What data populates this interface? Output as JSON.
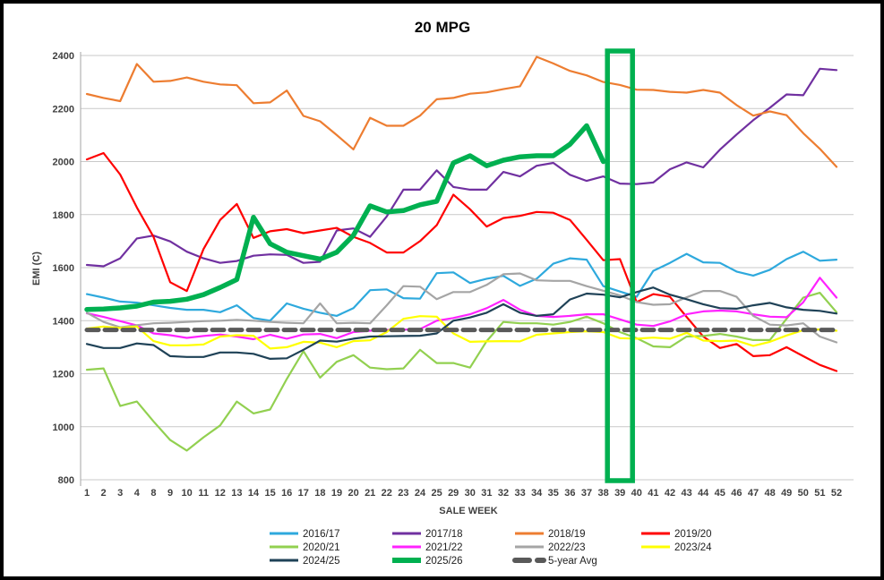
{
  "title": "20 MPG",
  "chart_data": {
    "type": "line",
    "title": "20 MPG",
    "xlabel": "SALE WEEK",
    "ylabel": "EMI (C)",
    "ylim": [
      800,
      2400
    ],
    "y_ticks": [
      800,
      1000,
      1200,
      1400,
      1600,
      1800,
      2000,
      2200,
      2400
    ],
    "grid": "horizontal",
    "legend_position": "bottom",
    "categories": [
      "1",
      "2",
      "3",
      "4",
      "8",
      "9",
      "10",
      "11",
      "12",
      "13",
      "14",
      "15",
      "16",
      "17",
      "18",
      "19",
      "20",
      "21",
      "22",
      "23",
      "24",
      "25",
      "29",
      "30",
      "31",
      "32",
      "33",
      "34",
      "35",
      "36",
      "37",
      "38",
      "39",
      "40",
      "41",
      "42",
      "43",
      "44",
      "45",
      "46",
      "47",
      "48",
      "49",
      "50",
      "51",
      "52"
    ],
    "highlight": {
      "week": "39",
      "color": "#00B050",
      "y_from": 800,
      "y_to": 2400
    },
    "series": [
      {
        "name": "2016/17",
        "color": "#2EA9DD",
        "width": 2.2,
        "draw_order": 0,
        "values": [
          1500,
          1487,
          1472,
          1468,
          1458,
          1448,
          1441,
          1441,
          1432,
          1458,
          1410,
          1400,
          1465,
          1445,
          1430,
          1418,
          1447,
          1515,
          1518,
          1485,
          1483,
          1579,
          1582,
          1542,
          1558,
          1569,
          1531,
          1558,
          1615,
          1635,
          1630,
          1530,
          1510,
          1490,
          1588,
          1618,
          1652,
          1620,
          1618,
          1585,
          1570,
          1592,
          1632,
          1660,
          1626,
          1630
        ]
      },
      {
        "name": "2017/18",
        "color": "#7030A0",
        "width": 2.2,
        "draw_order": 1,
        "values": [
          1610,
          1605,
          1635,
          1710,
          1721,
          1699,
          1660,
          1635,
          1618,
          1625,
          1645,
          1650,
          1648,
          1618,
          1622,
          1740,
          1748,
          1716,
          1793,
          1894,
          1894,
          1967,
          1904,
          1894,
          1894,
          1961,
          1944,
          1984,
          1995,
          1950,
          1927,
          1944,
          1917,
          1915,
          1921,
          1971,
          1997,
          1978,
          2045,
          2102,
          2156,
          2203,
          2253,
          2250,
          2350,
          2345
        ]
      },
      {
        "name": "2018/19",
        "color": "#ED7D31",
        "width": 2.2,
        "draw_order": 2,
        "values": [
          2255,
          2240,
          2228,
          2368,
          2301,
          2304,
          2317,
          2301,
          2291,
          2288,
          2220,
          2223,
          2268,
          2172,
          2152,
          2100,
          2046,
          2165,
          2135,
          2135,
          2173,
          2235,
          2240,
          2256,
          2261,
          2273,
          2284,
          2395,
          2370,
          2342,
          2325,
          2300,
          2289,
          2271,
          2270,
          2263,
          2260,
          2270,
          2260,
          2213,
          2173,
          2189,
          2175,
          2107,
          2048,
          1980
        ]
      },
      {
        "name": "2019/20",
        "color": "#FF0000",
        "width": 2.2,
        "draw_order": 3,
        "values": [
          2008,
          2032,
          1951,
          1827,
          1716,
          1545,
          1512,
          1670,
          1780,
          1840,
          1712,
          1737,
          1745,
          1730,
          1740,
          1750,
          1716,
          1693,
          1657,
          1657,
          1700,
          1760,
          1875,
          1820,
          1755,
          1787,
          1795,
          1810,
          1807,
          1780,
          1705,
          1628,
          1632,
          1470,
          1500,
          1490,
          1414,
          1340,
          1297,
          1312,
          1266,
          1270,
          1300,
          1266,
          1233,
          1210
        ]
      },
      {
        "name": "2020/21",
        "color": "#92D050",
        "width": 2.2,
        "draw_order": 4,
        "values": [
          1215,
          1220,
          1078,
          1095,
          1020,
          950,
          910,
          960,
          1005,
          1095,
          1050,
          1065,
          1180,
          1285,
          1185,
          1245,
          1270,
          1223,
          1217,
          1220,
          1290,
          1240,
          1240,
          1223,
          1323,
          1395,
          1390,
          1390,
          1385,
          1395,
          1415,
          1390,
          1357,
          1334,
          1303,
          1300,
          1340,
          1342,
          1350,
          1340,
          1327,
          1327,
          1407,
          1487,
          1505,
          1432
        ]
      },
      {
        "name": "2021/22",
        "color": "#FF22FF",
        "width": 2.2,
        "draw_order": 5,
        "values": [
          1428,
          1414,
          1398,
          1382,
          1352,
          1345,
          1335,
          1342,
          1348,
          1340,
          1330,
          1347,
          1332,
          1348,
          1350,
          1334,
          1357,
          1362,
          1365,
          1366,
          1368,
          1400,
          1410,
          1424,
          1447,
          1478,
          1441,
          1418,
          1414,
          1418,
          1424,
          1424,
          1405,
          1385,
          1380,
          1397,
          1424,
          1435,
          1438,
          1435,
          1424,
          1415,
          1413,
          1469,
          1562,
          1487
        ]
      },
      {
        "name": "2022/23",
        "color": "#A5A5A5",
        "width": 2.2,
        "draw_order": 6,
        "values": [
          1430,
          1395,
          1375,
          1383,
          1390,
          1392,
          1395,
          1398,
          1400,
          1403,
          1400,
          1395,
          1392,
          1390,
          1465,
          1390,
          1392,
          1390,
          1458,
          1530,
          1528,
          1481,
          1508,
          1508,
          1535,
          1575,
          1578,
          1552,
          1550,
          1550,
          1530,
          1513,
          1495,
          1470,
          1460,
          1462,
          1488,
          1512,
          1512,
          1490,
          1418,
          1385,
          1382,
          1390,
          1340,
          1318
        ]
      },
      {
        "name": "2023/24",
        "color": "#FFFF00",
        "width": 2.2,
        "draw_order": 7,
        "values": [
          1370,
          1378,
          1372,
          1378,
          1323,
          1307,
          1307,
          1310,
          1340,
          1345,
          1343,
          1295,
          1300,
          1320,
          1317,
          1300,
          1323,
          1326,
          1357,
          1407,
          1417,
          1415,
          1352,
          1320,
          1322,
          1323,
          1322,
          1347,
          1352,
          1357,
          1360,
          1357,
          1334,
          1332,
          1336,
          1332,
          1354,
          1325,
          1323,
          1325,
          1305,
          1320,
          1344,
          1364,
          1367,
          1362
        ]
      },
      {
        "name": "2024/25",
        "color": "#1F4257",
        "width": 2.2,
        "draw_order": 8,
        "values": [
          1312,
          1297,
          1297,
          1314,
          1308,
          1266,
          1263,
          1263,
          1280,
          1280,
          1275,
          1256,
          1258,
          1290,
          1325,
          1321,
          1332,
          1340,
          1341,
          1342,
          1343,
          1352,
          1400,
          1412,
          1430,
          1462,
          1430,
          1418,
          1424,
          1480,
          1502,
          1498,
          1488,
          1508,
          1525,
          1498,
          1481,
          1462,
          1447,
          1445,
          1458,
          1467,
          1450,
          1441,
          1437,
          1427
        ]
      },
      {
        "name": "2025/26",
        "color": "#00B050",
        "width": 5.5,
        "draw_order": 10,
        "values": [
          1442,
          1444,
          1448,
          1455,
          1470,
          1473,
          1481,
          1498,
          1525,
          1555,
          1790,
          1690,
          1658,
          1645,
          1632,
          1658,
          1722,
          1833,
          1810,
          1815,
          1837,
          1850,
          1995,
          2022,
          1984,
          2005,
          2018,
          2022,
          2022,
          2065,
          2135,
          2000,
          null,
          null,
          null,
          null,
          null,
          null,
          null,
          null,
          null,
          null,
          null,
          null,
          null,
          null
        ]
      },
      {
        "name": "5-year Avg",
        "color": "#595959",
        "width": 5,
        "dash": "13 7",
        "draw_order": 9,
        "values_const": 1365
      }
    ]
  }
}
